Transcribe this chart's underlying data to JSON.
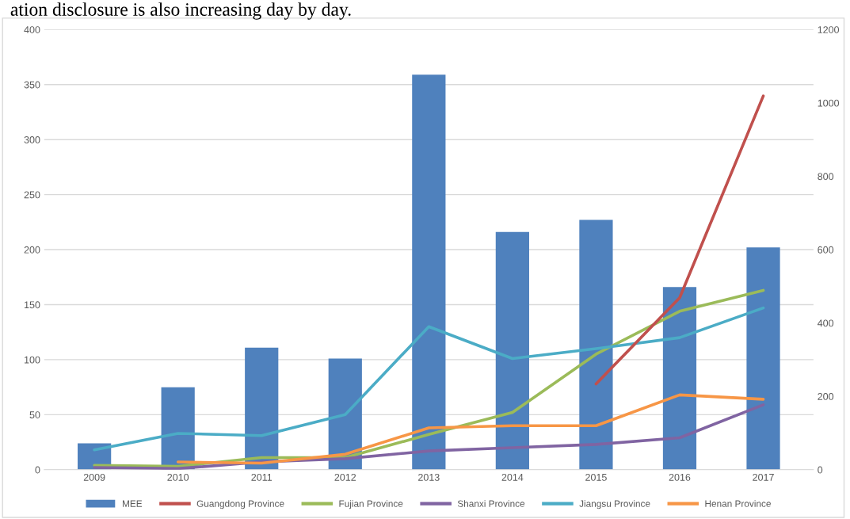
{
  "chart_data": {
    "type": "bar",
    "annotations": [
      "ation disclosure is also increasing day by day."
    ],
    "categories": [
      "2009",
      "2010",
      "2011",
      "2012",
      "2013",
      "2014",
      "2015",
      "2016",
      "2017"
    ],
    "series": [
      {
        "name": "MEE",
        "color": "#4f81bd",
        "values": [
          24,
          75,
          111,
          101,
          359,
          216,
          227,
          166,
          202
        ]
      },
      {
        "name": "Guangdong Province",
        "type": "line",
        "axis": "y2",
        "color": "#c0504d",
        "values": [
          null,
          null,
          null,
          null,
          null,
          null,
          234,
          469,
          1019
        ]
      },
      {
        "name": "Fujian Province",
        "type": "line",
        "color": "#9bbb59",
        "values": [
          4,
          3,
          11,
          11,
          32,
          52,
          105,
          144,
          163
        ]
      },
      {
        "name": "Shanxi Province",
        "type": "line",
        "color": "#8064a2",
        "values": [
          2,
          1,
          7,
          10,
          17,
          20,
          23,
          29,
          59
        ]
      },
      {
        "name": "Jiangsu Province",
        "type": "line",
        "color": "#4bacc6",
        "values": [
          18,
          33,
          31,
          50,
          130,
          101,
          110,
          120,
          147
        ]
      },
      {
        "name": "Henan Province",
        "type": "line",
        "color": "#f79646",
        "values": [
          null,
          7,
          6,
          14,
          38,
          40,
          40,
          68,
          64
        ]
      }
    ],
    "ylim": [
      0,
      400
    ],
    "yticks": [
      0,
      50,
      100,
      150,
      200,
      250,
      300,
      350,
      400
    ],
    "y2lim": [
      0,
      1200
    ],
    "y2ticks": [
      0,
      200,
      400,
      600,
      800,
      1000,
      1200
    ],
    "grid": "y",
    "legend": "bottom",
    "marker": "none",
    "line_style": "solid"
  }
}
